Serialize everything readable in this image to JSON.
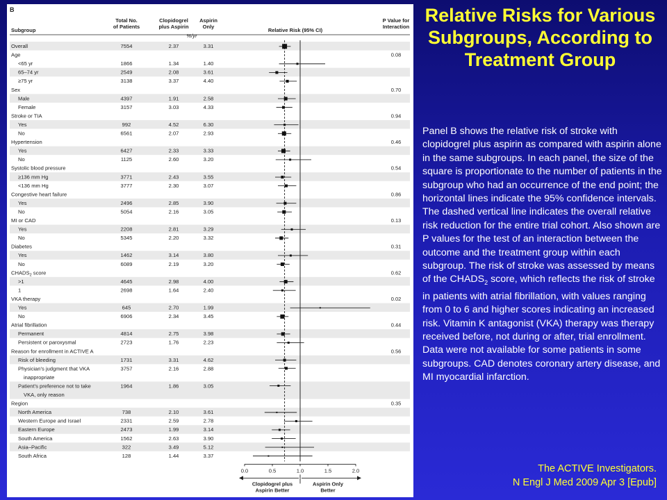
{
  "slide": {
    "title": "Relative Risks for Various Subgroups, According to Treatment Group",
    "caption": "Panel B shows the relative risk of stroke with clopidogrel plus aspirin as compared with aspirin alone in the same subgroups. In each panel, the size of the square is proportionate to the number of patients in the subgroup who had an occurrence of the end point; the horizontal lines indicate the 95% confidence intervals. The dashed vertical line indicates the overall relative risk reduction for the entire trial cohort. Also shown are P values for the test of an interaction between the outcome and the treatment group within each subgroup. The risk of stroke was assessed by means of the CHADS₂ score, which reflects the risk of stroke in patients with atrial fibrillation, with values ranging from 0 to 6 and higher scores indicating an increased risk. Vitamin K antagonist (VKA) therapy was therapy received before, not during or after, trial enrollment. Data were not available for some patients in some subgroups. CAD denotes coronary artery disease, and MI myocardial infarction.",
    "citation_line1": "The ACTIVE Investigators.",
    "citation_line2": "N Engl J Med 2009 Apr 3 [Epub]",
    "colors": {
      "background": "#1c1cb0",
      "title": "#ffff33",
      "text": "#ffffff",
      "panel": "#ffffff"
    }
  },
  "chart_data": {
    "type": "forest",
    "panel_label": "B",
    "columns": {
      "subgroup": "Subgroup",
      "total_line1": "Total No.",
      "total_line2": "of Patients",
      "clop_line1": "Clopidogrel",
      "clop_line2": "plus Aspirin",
      "asp_line1": "Aspirin",
      "asp_line2": "Only",
      "rate_unit": "%/yr",
      "rr": "Relative Risk (95% CI)",
      "p_line1": "P Value for",
      "p_line2": "Interaction"
    },
    "x_axis": {
      "ticks": [
        "0.0",
        "0.5",
        "1.0",
        "1.5",
        "2.0"
      ],
      "range": [
        0,
        2
      ],
      "reference_line": 1.0,
      "overall_dashed_line": 0.72,
      "left_label_line1": "Clopidogrel plus",
      "left_label_line2": "Aspirin Better",
      "right_label_line1": "Aspirin Only",
      "right_label_line2": "Better"
    },
    "rows": [
      {
        "kind": "row",
        "label": "Overall",
        "n": "7554",
        "clop": "2.37",
        "asp": "3.31",
        "rr": 0.72,
        "lo": 0.62,
        "hi": 0.83,
        "size": 7,
        "shade": true
      },
      {
        "kind": "heading",
        "label": "Age",
        "p": "0.08"
      },
      {
        "kind": "row",
        "label": "<65 yr",
        "n": "1866",
        "clop": "1.34",
        "asp": "1.40",
        "rr": 0.95,
        "lo": 0.62,
        "hi": 1.45,
        "size": 3
      },
      {
        "kind": "row",
        "label": "65–74 yr",
        "n": "2549",
        "clop": "2.08",
        "asp": "3.61",
        "rr": 0.58,
        "lo": 0.44,
        "hi": 0.77,
        "size": 4,
        "shade": true
      },
      {
        "kind": "row",
        "label": "≥75 yr",
        "n": "3138",
        "clop": "3.37",
        "asp": "4.40",
        "rr": 0.77,
        "lo": 0.63,
        "hi": 0.94,
        "size": 4
      },
      {
        "kind": "heading",
        "label": "Sex",
        "p": "0.70"
      },
      {
        "kind": "row",
        "label": "Male",
        "n": "4397",
        "clop": "1.91",
        "asp": "2.58",
        "rr": 0.74,
        "lo": 0.6,
        "hi": 0.92,
        "size": 5,
        "shade": true
      },
      {
        "kind": "row",
        "label": "Female",
        "n": "3157",
        "clop": "3.03",
        "asp": "4.33",
        "rr": 0.7,
        "lo": 0.57,
        "hi": 0.86,
        "size": 4
      },
      {
        "kind": "heading",
        "label": "Stroke or TIA",
        "p": "0.94"
      },
      {
        "kind": "row",
        "label": "Yes",
        "n": "992",
        "clop": "4.52",
        "asp": "6.30",
        "rr": 0.72,
        "lo": 0.53,
        "hi": 0.97,
        "size": 3,
        "shade": true
      },
      {
        "kind": "row",
        "label": "No",
        "n": "6561",
        "clop": "2.07",
        "asp": "2.93",
        "rr": 0.71,
        "lo": 0.6,
        "hi": 0.84,
        "size": 6
      },
      {
        "kind": "heading",
        "label": "Hypertension",
        "p": "0.46"
      },
      {
        "kind": "row",
        "label": "Yes",
        "n": "6427",
        "clop": "2.33",
        "asp": "3.33",
        "rr": 0.7,
        "lo": 0.6,
        "hi": 0.82,
        "size": 6,
        "shade": true
      },
      {
        "kind": "row",
        "label": "No",
        "n": "1125",
        "clop": "2.60",
        "asp": "3.20",
        "rr": 0.82,
        "lo": 0.56,
        "hi": 1.2,
        "size": 3
      },
      {
        "kind": "heading",
        "label": "Systolic blood pressure",
        "p": "0.54"
      },
      {
        "kind": "row",
        "label": "≥136 mm Hg",
        "n": "3771",
        "clop": "2.43",
        "asp": "3.55",
        "rr": 0.68,
        "lo": 0.55,
        "hi": 0.84,
        "size": 4,
        "shade": true
      },
      {
        "kind": "row",
        "label": "<136 mm Hg",
        "n": "3777",
        "clop": "2.30",
        "asp": "3.07",
        "rr": 0.75,
        "lo": 0.6,
        "hi": 0.93,
        "size": 4
      },
      {
        "kind": "heading",
        "label": "Congestive heart failure",
        "p": "0.86"
      },
      {
        "kind": "row",
        "label": "Yes",
        "n": "2496",
        "clop": "2.85",
        "asp": "3.90",
        "rr": 0.73,
        "lo": 0.57,
        "hi": 0.93,
        "size": 4,
        "shade": true
      },
      {
        "kind": "row",
        "label": "No",
        "n": "5054",
        "clop": "2.16",
        "asp": "3.05",
        "rr": 0.71,
        "lo": 0.59,
        "hi": 0.85,
        "size": 5
      },
      {
        "kind": "heading",
        "label": "MI or CAD",
        "p": "0.13"
      },
      {
        "kind": "row",
        "label": "Yes",
        "n": "2208",
        "clop": "2.81",
        "asp": "3.29",
        "rr": 0.85,
        "lo": 0.66,
        "hi": 1.1,
        "size": 3,
        "shade": true
      },
      {
        "kind": "row",
        "label": "No",
        "n": "5345",
        "clop": "2.20",
        "asp": "3.32",
        "rr": 0.66,
        "lo": 0.55,
        "hi": 0.79,
        "size": 5
      },
      {
        "kind": "heading",
        "label": "Diabetes",
        "p": "0.31"
      },
      {
        "kind": "row",
        "label": "Yes",
        "n": "1462",
        "clop": "3.14",
        "asp": "3.80",
        "rr": 0.83,
        "lo": 0.6,
        "hi": 1.14,
        "size": 3,
        "shade": true
      },
      {
        "kind": "row",
        "label": "No",
        "n": "6089",
        "clop": "2.19",
        "asp": "3.20",
        "rr": 0.68,
        "lo": 0.58,
        "hi": 0.81,
        "size": 5
      },
      {
        "kind": "heading",
        "label": "CHADS₂ score",
        "p": "0.62"
      },
      {
        "kind": "row",
        "label": ">1",
        "n": "4645",
        "clop": "2.98",
        "asp": "4.00",
        "rr": 0.74,
        "lo": 0.63,
        "hi": 0.88,
        "size": 5,
        "shade": true
      },
      {
        "kind": "row",
        "label": "1",
        "n": "2698",
        "clop": "1.64",
        "asp": "2.40",
        "rr": 0.68,
        "lo": 0.51,
        "hi": 0.92,
        "size": 3
      },
      {
        "kind": "heading",
        "label": "VKA therapy",
        "p": "0.02"
      },
      {
        "kind": "row",
        "label": "Yes",
        "n": "645",
        "clop": "2.70",
        "asp": "1.99",
        "rr": 1.36,
        "lo": 0.82,
        "hi": 2.26,
        "size": 2,
        "shade": true
      },
      {
        "kind": "row",
        "label": "No",
        "n": "6906",
        "clop": "2.34",
        "asp": "3.45",
        "rr": 0.68,
        "lo": 0.58,
        "hi": 0.79,
        "size": 6
      },
      {
        "kind": "heading",
        "label": "Atrial fibrillation",
        "p": "0.44"
      },
      {
        "kind": "row",
        "label": "Permanent",
        "n": "4814",
        "clop": "2.75",
        "asp": "3.98",
        "rr": 0.69,
        "lo": 0.58,
        "hi": 0.82,
        "size": 5,
        "shade": true
      },
      {
        "kind": "row",
        "label": "Persistent or paroxysmal",
        "n": "2723",
        "clop": "1.76",
        "asp": "2.23",
        "rr": 0.79,
        "lo": 0.58,
        "hi": 1.07,
        "size": 3
      },
      {
        "kind": "heading",
        "label": "Reason for enrollment in ACTIVE A",
        "p": "0.56"
      },
      {
        "kind": "row",
        "label": "Risk of bleeding",
        "n": "1731",
        "clop": "3.31",
        "asp": "4.62",
        "rr": 0.72,
        "lo": 0.55,
        "hi": 0.93,
        "size": 4,
        "shade": true
      },
      {
        "kind": "row",
        "label": "Physician's judgment that VKA",
        "label2": "inappropriate",
        "n": "3757",
        "clop": "2.16",
        "asp": "2.88",
        "rr": 0.75,
        "lo": 0.61,
        "hi": 0.92,
        "size": 4,
        "tall": true
      },
      {
        "kind": "row",
        "label": "Patient's preference not to take",
        "label2": "VKA, only reason",
        "n": "1964",
        "clop": "1.86",
        "asp": "3.05",
        "rr": 0.61,
        "lo": 0.45,
        "hi": 0.83,
        "size": 3,
        "tall": true,
        "shade": true
      },
      {
        "kind": "heading",
        "label": "Region",
        "p": "0.35"
      },
      {
        "kind": "row",
        "label": "North America",
        "n": "738",
        "clop": "2.10",
        "asp": "3.61",
        "rr": 0.58,
        "lo": 0.36,
        "hi": 0.94,
        "size": 2,
        "shade": true
      },
      {
        "kind": "row",
        "label": "Western Europe and Israel",
        "n": "2331",
        "clop": "2.59",
        "asp": "2.78",
        "rr": 0.93,
        "lo": 0.71,
        "hi": 1.22,
        "size": 3
      },
      {
        "kind": "row",
        "label": "Eastern Europe",
        "n": "2473",
        "clop": "1.99",
        "asp": "3.14",
        "rr": 0.63,
        "lo": 0.49,
        "hi": 0.82,
        "size": 3,
        "shade": true
      },
      {
        "kind": "row",
        "label": "South America",
        "n": "1562",
        "clop": "2.63",
        "asp": "3.90",
        "rr": 0.67,
        "lo": 0.49,
        "hi": 0.92,
        "size": 3
      },
      {
        "kind": "row",
        "label": "Asia–Pacific",
        "n": "322",
        "clop": "3.49",
        "asp": "5.12",
        "rr": 0.68,
        "lo": 0.37,
        "hi": 1.25,
        "size": 2,
        "shade": true
      },
      {
        "kind": "row",
        "label": "South Africa",
        "n": "128",
        "clop": "1.44",
        "asp": "3.37",
        "rr": 0.43,
        "lo": 0.15,
        "hi": 1.22,
        "size": 2
      }
    ]
  }
}
